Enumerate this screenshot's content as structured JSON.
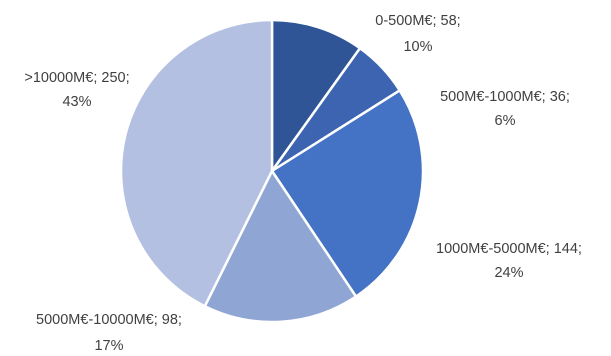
{
  "chart_data": {
    "type": "pie",
    "title": "",
    "slices": [
      {
        "label": "0-500M€; 58;",
        "pct": "10%",
        "value": 58,
        "color": "#2f5597"
      },
      {
        "label": "500M€-1000M€; 36;",
        "pct": "6%",
        "value": 36,
        "color": "#3c64b1"
      },
      {
        "label": "1000M€-5000M€; 144;",
        "pct": "24%",
        "value": 144,
        "color": "#4472c4"
      },
      {
        "label": "5000M€-10000M€; 98;",
        "pct": "17%",
        "value": 98,
        "color": "#8fa5d4"
      },
      {
        "label": ">10000M€; 250;",
        "pct": "43%",
        "value": 250,
        "color": "#b4c0e2"
      }
    ]
  }
}
